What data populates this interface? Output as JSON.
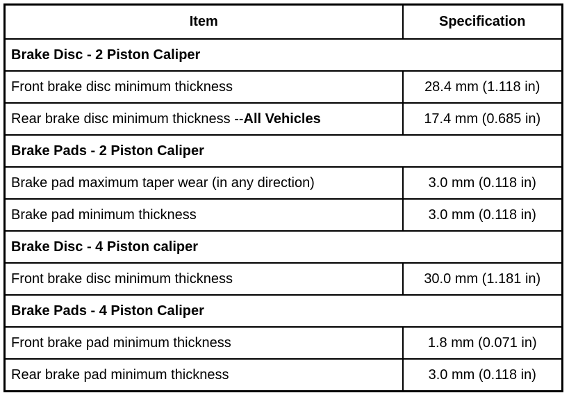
{
  "header": {
    "item": "Item",
    "specification": "Specification"
  },
  "rows": [
    {
      "type": "section",
      "label": "Brake Disc - 2 Piston Caliper"
    },
    {
      "type": "row",
      "item": "Front brake disc minimum thickness",
      "spec": "28.4 mm (1.118 in)"
    },
    {
      "type": "row",
      "item": "Rear brake disc minimum thickness --",
      "item_bold": "All Vehicles",
      "spec": "17.4 mm (0.685 in)"
    },
    {
      "type": "section",
      "label": "Brake Pads - 2 Piston Caliper"
    },
    {
      "type": "row",
      "item": "Brake pad maximum taper wear (in any direction)",
      "spec": "3.0 mm (0.118 in)"
    },
    {
      "type": "row",
      "item": "Brake pad minimum thickness",
      "spec": "3.0 mm (0.118 in)"
    },
    {
      "type": "section",
      "label": "Brake Disc - 4 Piston caliper"
    },
    {
      "type": "row",
      "item": "Front brake disc minimum thickness",
      "spec": "30.0 mm (1.181 in)"
    },
    {
      "type": "section",
      "label": "Brake Pads - 4 Piston Caliper"
    },
    {
      "type": "row",
      "item": "Front brake pad minimum thickness",
      "spec": "1.8 mm (0.071 in)"
    },
    {
      "type": "row",
      "item": "Rear brake pad minimum thickness",
      "spec": "3.0 mm (0.118 in)"
    }
  ]
}
